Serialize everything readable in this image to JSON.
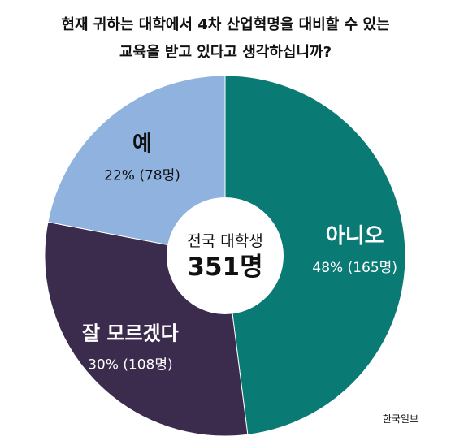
{
  "chart_data": {
    "type": "pie",
    "title_lines": [
      "현재 귀하는 대학에서 4차 산업혁명을 대비할 수 있는",
      "교육을 받고 있다고 생각하십니까?"
    ],
    "center_label": "전국 대학생",
    "center_value": "351명",
    "slices": [
      {
        "label": "아니오",
        "value_text": "48% (165명)",
        "percent": 48,
        "count": 165,
        "color": "#0a7a74",
        "text_color": "#ffffff"
      },
      {
        "label": "잘 모르겠다",
        "value_text": "30% (108명)",
        "percent": 30,
        "count": 108,
        "color": "#3b2b4c",
        "text_color": "#ffffff"
      },
      {
        "label": "예",
        "value_text": "22% (78명)",
        "percent": 22,
        "count": 78,
        "color": "#8fb3de",
        "text_color": "#111111"
      }
    ],
    "source": "한국일보"
  }
}
